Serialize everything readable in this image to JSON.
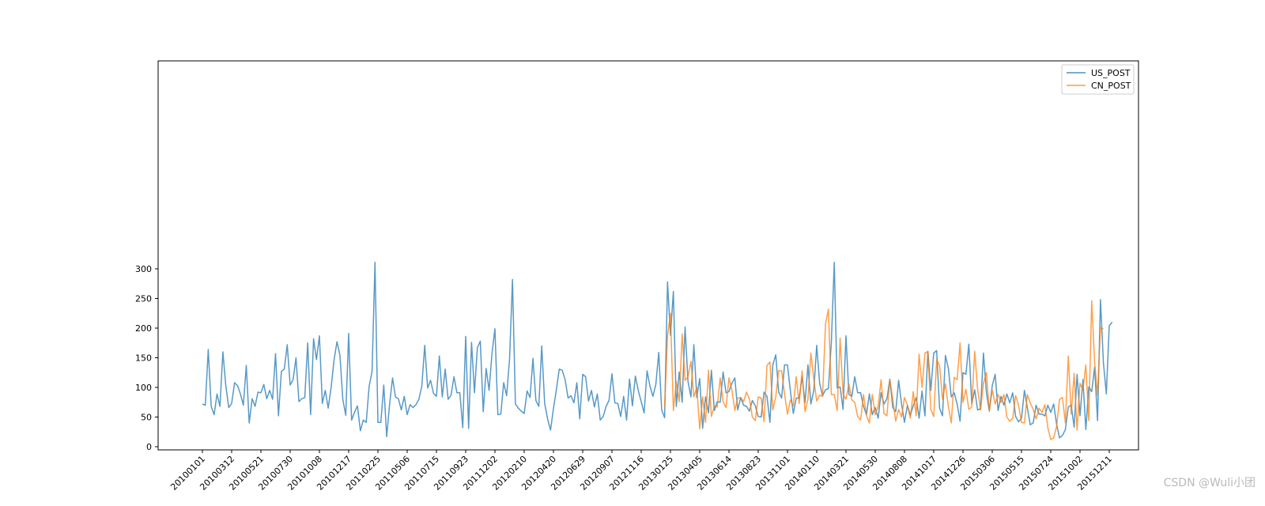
{
  "chart_data": {
    "type": "line",
    "title": "",
    "xlabel": "",
    "ylabel": "",
    "ylim": [
      -3,
      325
    ],
    "yticks": [
      0,
      50,
      100,
      150,
      200,
      250,
      300
    ],
    "xticks": [
      "20100101",
      "20100312",
      "20100521",
      "20100730",
      "20101008",
      "20101217",
      "20110225",
      "20110506",
      "20110715",
      "20110923",
      "20111202",
      "20120210",
      "20120420",
      "20120629",
      "20120907",
      "20121116",
      "20130125",
      "20130405",
      "20130614",
      "20130823",
      "20131101",
      "20140110",
      "20140321",
      "20140530",
      "20140808",
      "20141017",
      "20141226",
      "20150306",
      "20150515",
      "20150724",
      "20151002",
      "20151211"
    ],
    "grid": false,
    "legend_position": "top-right",
    "colors": {
      "US_POST": "#1f77b4",
      "CN_POST": "#ff7f0e"
    },
    "series": [
      {
        "name": "US_POST",
        "start_index": 0,
        "values": [
          72,
          70,
          164,
          68,
          54,
          89,
          68,
          160,
          103,
          66,
          73,
          108,
          103,
          89,
          70,
          137,
          40,
          81,
          68,
          92,
          91,
          105,
          81,
          95,
          80,
          157,
          52,
          127,
          131,
          172,
          104,
          113,
          150,
          76,
          81,
          83,
          175,
          54,
          182,
          147,
          187,
          73,
          95,
          65,
          100,
          146,
          177,
          155,
          80,
          53,
          191,
          45,
          58,
          69,
          27,
          45,
          41,
          102,
          127,
          311,
          41,
          41,
          104,
          17,
          72,
          116,
          84,
          81,
          62,
          85,
          54,
          71,
          66,
          71,
          80,
          102,
          171,
          99,
          112,
          90,
          85,
          153,
          84,
          131,
          80,
          87,
          118,
          91,
          91,
          32,
          186,
          31,
          176,
          91,
          167,
          178,
          59,
          132,
          95,
          158,
          199,
          54,
          55,
          108,
          86,
          148,
          282,
          72,
          65,
          60,
          56,
          94,
          83,
          149,
          78,
          68,
          170,
          73,
          47,
          28,
          64,
          96,
          131,
          129,
          113,
          82,
          86,
          74,
          108,
          47,
          122,
          118,
          77,
          95,
          67,
          89,
          45,
          51,
          68,
          78,
          123,
          74,
          73,
          51,
          85,
          45,
          114,
          69,
          119,
          95,
          76,
          57,
          128,
          102,
          85,
          105,
          159,
          62,
          49,
          278,
          188,
          262,
          68,
          126,
          75,
          202,
          110,
          84,
          172,
          83,
          115,
          31,
          84,
          57,
          129,
          61,
          76,
          75,
          126,
          91,
          93,
          107,
          116,
          62,
          83,
          70,
          68,
          60,
          78,
          69,
          51,
          50,
          92,
          85,
          41,
          138,
          155,
          92,
          82,
          138,
          138,
          94,
          56,
          82,
          82,
          118,
          74,
          138,
          72,
          95,
          171,
          107,
          86,
          96,
          98,
          176,
          311,
          99,
          101,
          63,
          187,
          88,
          85,
          118,
          91,
          91,
          68,
          54,
          89,
          54,
          66,
          48,
          91,
          72,
          81,
          114,
          66,
          59,
          112,
          72,
          41,
          70,
          53,
          69,
          83,
          48,
          94,
          52,
          161,
          95,
          158,
          162,
          65,
          52,
          154,
          132,
          84,
          91,
          72,
          43,
          125,
          122,
          173,
          72,
          96,
          62,
          64,
          158,
          92,
          60,
          103,
          122,
          61,
          85,
          70,
          89,
          74,
          91,
          51,
          42,
          48,
          95,
          66,
          37,
          40,
          70,
          55,
          55,
          52,
          70,
          58,
          72,
          38,
          15,
          19,
          29,
          67,
          70,
          33,
          122,
          52,
          113,
          29,
          101,
          93,
          134,
          44,
          248,
          142,
          89,
          204,
          210
        ]
      },
      {
        "name": "CN_POST",
        "start_index": 158,
        "values": [
          65,
          187,
          225,
          61,
          110,
          76,
          190,
          112,
          118,
          144,
          84,
          100,
          30,
          84,
          41,
          129,
          51,
          69,
          67,
          116,
          76,
          66,
          116,
          96,
          61,
          82,
          83,
          76,
          92,
          81,
          50,
          44,
          84,
          82,
          42,
          137,
          143,
          62,
          84,
          128,
          128,
          89,
          55,
          79,
          69,
          118,
          73,
          128,
          59,
          80,
          158,
          114,
          77,
          87,
          85,
          207,
          232,
          88,
          88,
          61,
          183,
          89,
          80,
          106,
          79,
          75,
          51,
          45,
          88,
          53,
          40,
          88,
          54,
          68,
          113,
          56,
          52,
          113,
          80,
          43,
          63,
          50,
          83,
          70,
          48,
          93,
          52,
          156,
          100,
          158,
          160,
          63,
          51,
          147,
          137,
          80,
          106,
          68,
          40,
          117,
          113,
          175,
          75,
          97,
          63,
          67,
          161,
          97,
          62,
          107,
          125,
          60,
          96,
          72,
          88,
          75,
          88,
          50,
          43,
          48,
          86,
          70,
          41,
          40,
          88,
          74,
          63,
          47,
          65,
          58,
          71,
          32,
          12,
          15,
          34,
          80,
          83,
          40,
          153,
          55,
          124,
          28,
          107,
          96,
          138,
          44,
          246,
          143,
          87,
          201,
          199
        ]
      }
    ]
  },
  "legend": [
    {
      "label": "US_POST",
      "color": "#1f77b4"
    },
    {
      "label": "CN_POST",
      "color": "#ff7f0e"
    }
  ],
  "watermark": "CSDN @Wuli小团"
}
